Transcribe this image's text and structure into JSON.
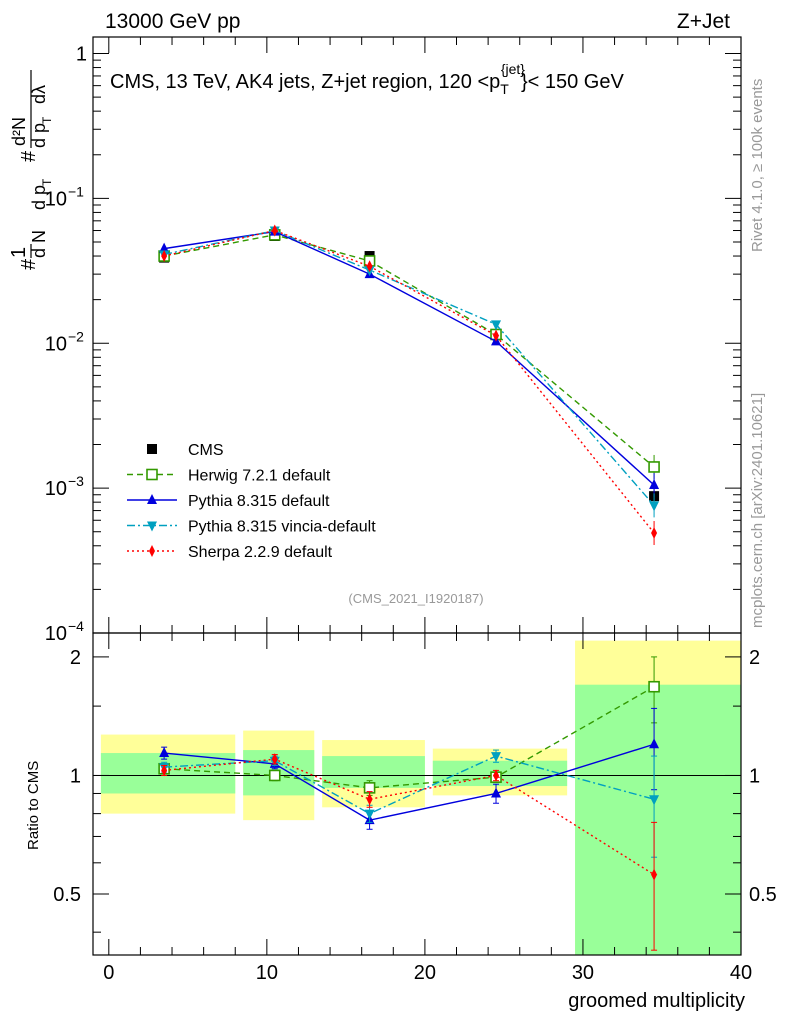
{
  "header": {
    "left": "13000 GeV pp",
    "right": "Z+Jet"
  },
  "side_labels": {
    "rivet": "Rivet 4.1.0, ≥ 100k events",
    "mcplots": "mcplots.cern.ch [arXiv:2401.10621]"
  },
  "chart_data": [
    {
      "type": "line",
      "role": "main",
      "title": "CMS, 13 TeV, AK4 jets, Z+jet region, 120 <p_T^{jet}< 150 GeV",
      "title_parts": {
        "pre": "CMS, 13 TeV, AK4 jets, Z+jet region, 120 <p",
        "sub": "T",
        "sup": "{jet}",
        "post": "}< 150 GeV"
      },
      "yscale": "log",
      "ylim": [
        0.0001,
        1.3
      ],
      "xlim": [
        -1,
        40
      ],
      "ylabel": "1/dN/dpT # d²N/dpT dλ",
      "ylabel_parts": {
        "one": "1",
        "dn": "d N",
        "dpt": "d p",
        "t": "T",
        "hash": "#",
        "d2n": "d²N",
        "dldl": "d p",
        "t2": "T",
        "lam": "dλ"
      },
      "y_ticks": [
        {
          "value": 1,
          "label": "1"
        },
        {
          "value": 0.1,
          "label": "10",
          "exp": "−1"
        },
        {
          "value": 0.01,
          "label": "10",
          "exp": "−2"
        },
        {
          "value": 0.001,
          "label": "10",
          "exp": "−3"
        },
        {
          "value": 0.0001,
          "label": "10",
          "exp": "−4"
        }
      ],
      "annotation": "(CMS_2021_I1920187)",
      "legend_position": "lower-left",
      "bins": [
        {
          "x": 3.5,
          "lo": -1,
          "hi": 8
        },
        {
          "x": 10.5,
          "lo": 8,
          "hi": 13
        },
        {
          "x": 16.5,
          "lo": 13,
          "hi": 20
        },
        {
          "x": 24.5,
          "lo": 20,
          "hi": 29
        },
        {
          "x": 34.5,
          "lo": 29,
          "hi": 40
        }
      ],
      "series": [
        {
          "name": "CMS",
          "marker": "square",
          "color": "#000000",
          "line": "none",
          "values": [
            0.039,
            0.055,
            0.04,
            0.0115,
            0.00088
          ]
        },
        {
          "name": "Herwig 7.2.1 default",
          "marker": "open-square",
          "color": "#339900",
          "line": "dashed",
          "values": [
            0.04,
            0.056,
            0.037,
            0.0115,
            0.0014
          ]
        },
        {
          "name": "Pythia 8.315 default",
          "marker": "triangle-up",
          "color": "#0000dd",
          "line": "solid",
          "values": [
            0.045,
            0.059,
            0.03,
            0.0103,
            0.00105
          ]
        },
        {
          "name": "Pythia 8.315 vincia-default",
          "marker": "triangle-down",
          "color": "#00a0c0",
          "line": "dashdot",
          "values": [
            0.041,
            0.06,
            0.032,
            0.0135,
            0.00076
          ]
        },
        {
          "name": "Sherpa 2.2.9 default",
          "marker": "diamond",
          "color": "#ff0000",
          "line": "dotted",
          "values": [
            0.04,
            0.06,
            0.034,
            0.0113,
            0.00049
          ]
        }
      ]
    },
    {
      "type": "line",
      "role": "ratio",
      "ylabel": "Ratio to CMS",
      "xlabel": "groomed multiplicity",
      "yscale": "log",
      "ylim": [
        0.35,
        2.3
      ],
      "xlim": [
        -1,
        40
      ],
      "y_ticks": [
        {
          "value": 0.5,
          "label": "0.5"
        },
        {
          "value": 1,
          "label": "1"
        },
        {
          "value": 2,
          "label": "2"
        }
      ],
      "x_ticks": [
        {
          "value": 0,
          "label": "0"
        },
        {
          "value": 10,
          "label": "10"
        },
        {
          "value": 20,
          "label": "20"
        },
        {
          "value": 30,
          "label": "30"
        },
        {
          "value": 40,
          "label": "40"
        }
      ],
      "bands": {
        "yellow_color": "#ffff99",
        "green_color": "#99ff99",
        "yellow": [
          [
            0.8,
            1.27
          ],
          [
            0.77,
            1.3
          ],
          [
            0.83,
            1.23
          ],
          [
            0.89,
            1.17
          ],
          [
            0.35,
            2.2
          ]
        ],
        "green": [
          [
            0.9,
            1.14
          ],
          [
            0.89,
            1.16
          ],
          [
            0.93,
            1.12
          ],
          [
            0.94,
            1.09
          ],
          [
            0.35,
            1.7
          ]
        ]
      },
      "series": [
        {
          "name": "Herwig 7.2.1 default",
          "values": [
            1.04,
            1.0,
            0.93,
            0.99,
            1.68
          ],
          "err": [
            0.03,
            0.03,
            0.04,
            0.03,
            0.32
          ]
        },
        {
          "name": "Pythia 8.315 default",
          "values": [
            1.14,
            1.07,
            0.77,
            0.9,
            1.2
          ],
          "err": [
            0.04,
            0.03,
            0.04,
            0.05,
            0.28
          ]
        },
        {
          "name": "Pythia 8.315 vincia-default",
          "values": [
            1.05,
            1.09,
            0.8,
            1.12,
            0.87
          ],
          "err": [
            0.03,
            0.03,
            0.04,
            0.04,
            0.25
          ]
        },
        {
          "name": "Sherpa 2.2.9 default",
          "values": [
            1.03,
            1.1,
            0.87,
            1.0,
            0.56
          ],
          "err": [
            0.03,
            0.03,
            0.04,
            0.03,
            0.2
          ]
        }
      ]
    }
  ]
}
